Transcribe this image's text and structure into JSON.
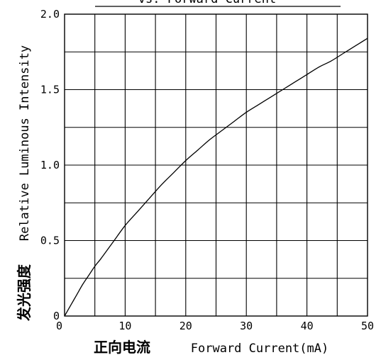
{
  "chart_data": {
    "type": "line",
    "title_fragment": "vs. Forward Current",
    "xlabel_cn": "正向电流",
    "xlabel_en": "Forward Current(mA)",
    "ylabel_cn": "发光强度",
    "ylabel_en": "Relative Luminous Intensity",
    "xlim": [
      0,
      50
    ],
    "ylim": [
      0,
      2.0
    ],
    "x_ticks": [
      {
        "value": 0,
        "label": "0"
      },
      {
        "value": 10,
        "label": "10"
      },
      {
        "value": 20,
        "label": "20"
      },
      {
        "value": 30,
        "label": "30"
      },
      {
        "value": 40,
        "label": "40"
      },
      {
        "value": 50,
        "label": "50"
      }
    ],
    "y_ticks": [
      {
        "value": 0,
        "label": "0"
      },
      {
        "value": 0.5,
        "label": "0.5"
      },
      {
        "value": 1.0,
        "label": "1.0"
      },
      {
        "value": 1.5,
        "label": "1.5"
      },
      {
        "value": 2.0,
        "label": "2.0"
      }
    ],
    "x_gridlines": [
      5,
      10,
      15,
      20,
      25,
      30,
      35,
      40,
      45
    ],
    "y_gridlines": [
      0.25,
      0.5,
      0.75,
      1.0,
      1.25,
      1.5,
      1.75
    ],
    "grid": true,
    "series": [
      {
        "x": [
          0,
          1,
          2,
          3,
          4,
          5,
          6,
          8,
          10,
          12,
          14,
          16,
          18,
          20,
          22,
          24,
          26,
          28,
          30,
          32,
          34,
          36,
          38,
          40,
          42,
          44,
          46,
          48,
          50
        ],
        "y": [
          0,
          0.07,
          0.14,
          0.21,
          0.27,
          0.33,
          0.38,
          0.49,
          0.6,
          0.69,
          0.78,
          0.87,
          0.95,
          1.03,
          1.1,
          1.17,
          1.23,
          1.29,
          1.35,
          1.4,
          1.45,
          1.5,
          1.55,
          1.6,
          1.65,
          1.69,
          1.74,
          1.79,
          1.84
        ]
      }
    ]
  }
}
